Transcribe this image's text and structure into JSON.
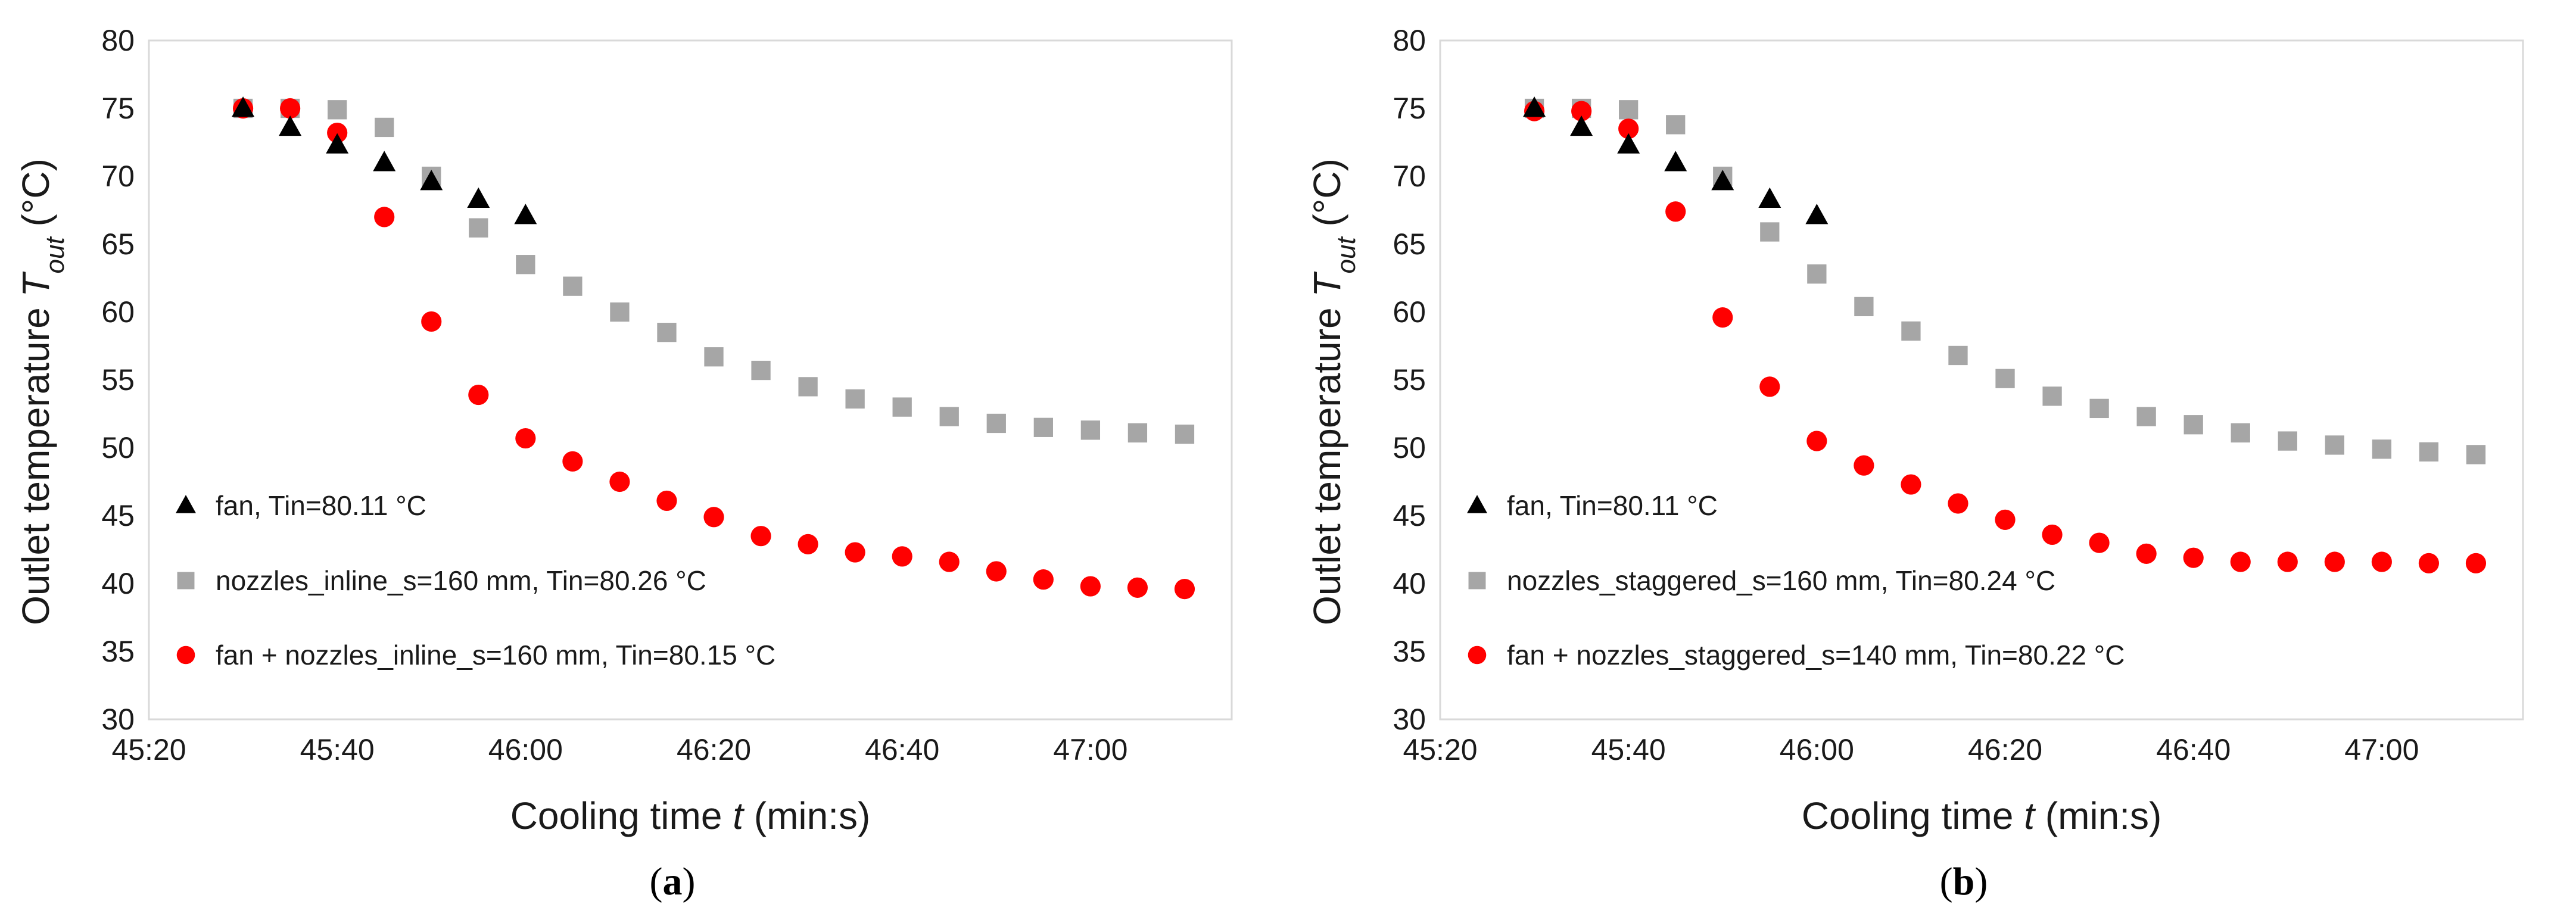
{
  "colors": {
    "fan": "#000000",
    "nozzles": "#a6a6a6",
    "fan_nozzles": "#ff0000"
  },
  "chart_data": [
    {
      "type": "scatter",
      "panel_label": "a",
      "caption_open": "(",
      "caption_close": ")",
      "title": "",
      "xlabel_prefix": "Cooling time ",
      "xlabel_var": "t",
      "xlabel_suffix": " (min:s)",
      "ylabel_prefix": "Outlet temperature ",
      "ylabel_var": "T",
      "ylabel_sub": "out",
      "ylabel_unit": " (°C)",
      "x_unit": "seconds",
      "xlim": [
        2720,
        2835
      ],
      "ylim": [
        30,
        80
      ],
      "x_ticks": [
        2720,
        2740,
        2760,
        2780,
        2800,
        2820
      ],
      "x_tick_labels": [
        "45:20",
        "45:40",
        "46:00",
        "46:20",
        "46:40",
        "47:00"
      ],
      "y_ticks": [
        30,
        35,
        40,
        45,
        50,
        55,
        60,
        65,
        70,
        75,
        80
      ],
      "legend_position": "bottom-left",
      "series": [
        {
          "name": "fan, Tin=80.11 °C",
          "marker": "triangle",
          "color": "#000000",
          "x": [
            2730,
            2735,
            2740,
            2745,
            2750,
            2755,
            2760
          ],
          "y": [
            75.0,
            73.6,
            72.3,
            71.0,
            69.6,
            68.3,
            67.1
          ]
        },
        {
          "name": "nozzles_inline_s=160 mm, Tin=80.26 °C",
          "marker": "square",
          "color": "#a6a6a6",
          "x": [
            2730,
            2735,
            2740,
            2745,
            2750,
            2755,
            2760,
            2765,
            2770,
            2775,
            2780,
            2785,
            2790,
            2795,
            2800,
            2805,
            2810,
            2815,
            2820,
            2825,
            2830
          ],
          "y": [
            75.0,
            75.0,
            74.9,
            73.6,
            70.0,
            66.2,
            63.5,
            61.9,
            60.0,
            58.5,
            56.7,
            55.7,
            54.5,
            53.6,
            53.0,
            52.3,
            51.8,
            51.5,
            51.3,
            51.1,
            51.0
          ]
        },
        {
          "name": "fan + nozzles_inline_s=160 mm, Tin=80.15 °C",
          "marker": "circle",
          "color": "#ff0000",
          "x": [
            2730,
            2735,
            2740,
            2745,
            2750,
            2755,
            2760,
            2765,
            2770,
            2775,
            2780,
            2785,
            2790,
            2795,
            2800,
            2805,
            2810,
            2815,
            2820,
            2825,
            2830
          ],
          "y": [
            75.0,
            75.0,
            73.2,
            67.0,
            59.3,
            53.9,
            50.7,
            49.0,
            47.5,
            46.1,
            44.9,
            43.5,
            42.9,
            42.3,
            42.0,
            41.6,
            40.9,
            40.3,
            39.8,
            39.7,
            39.6
          ]
        }
      ]
    },
    {
      "type": "scatter",
      "panel_label": "b",
      "caption_open": "(",
      "caption_close": ")",
      "title": "",
      "xlabel_prefix": "Cooling time ",
      "xlabel_var": "t",
      "xlabel_suffix": " (min:s)",
      "ylabel_prefix": "Outlet temperature ",
      "ylabel_var": "T",
      "ylabel_sub": "out",
      "ylabel_unit": " (°C)",
      "x_unit": "seconds",
      "xlim": [
        2720,
        2835
      ],
      "ylim": [
        30,
        80
      ],
      "x_ticks": [
        2720,
        2740,
        2760,
        2780,
        2800,
        2820
      ],
      "x_tick_labels": [
        "45:20",
        "45:40",
        "46:00",
        "46:20",
        "46:40",
        "47:00"
      ],
      "y_ticks": [
        30,
        35,
        40,
        45,
        50,
        55,
        60,
        65,
        70,
        75,
        80
      ],
      "legend_position": "bottom-left",
      "series": [
        {
          "name": "fan, Tin=80.11 °C",
          "marker": "triangle",
          "color": "#000000",
          "x": [
            2730,
            2735,
            2740,
            2745,
            2750,
            2755,
            2760
          ],
          "y": [
            75.0,
            73.6,
            72.3,
            71.0,
            69.6,
            68.3,
            67.1
          ]
        },
        {
          "name": "nozzles_staggered_s=160 mm, Tin=80.24 °C",
          "marker": "square",
          "color": "#a6a6a6",
          "x": [
            2730,
            2735,
            2740,
            2745,
            2750,
            2755,
            2760,
            2765,
            2770,
            2775,
            2780,
            2785,
            2790,
            2795,
            2800,
            2805,
            2810,
            2815,
            2820,
            2825,
            2830
          ],
          "y": [
            75.0,
            75.0,
            74.9,
            73.8,
            70.0,
            65.9,
            62.8,
            60.4,
            58.6,
            56.8,
            55.1,
            53.8,
            52.9,
            52.3,
            51.7,
            51.1,
            50.5,
            50.2,
            49.9,
            49.7,
            49.5
          ]
        },
        {
          "name": "fan + nozzles_staggered_s=140 mm, Tin=80.22 °C",
          "marker": "circle",
          "color": "#ff0000",
          "x": [
            2730,
            2735,
            2740,
            2745,
            2750,
            2755,
            2760,
            2765,
            2770,
            2775,
            2780,
            2785,
            2790,
            2795,
            2800,
            2805,
            2810,
            2815,
            2820,
            2825,
            2830
          ],
          "y": [
            74.8,
            74.8,
            73.5,
            67.4,
            59.6,
            54.5,
            50.5,
            48.7,
            47.3,
            45.9,
            44.7,
            43.6,
            43.0,
            42.2,
            41.9,
            41.6,
            41.6,
            41.6,
            41.6,
            41.5,
            41.5
          ]
        }
      ]
    }
  ]
}
